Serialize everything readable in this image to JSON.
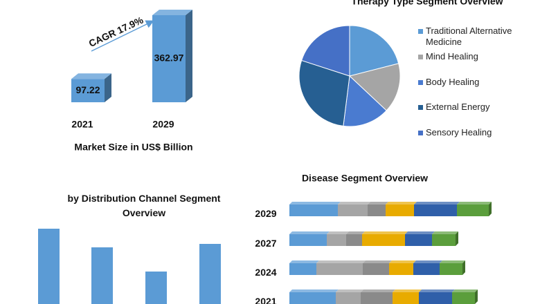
{
  "chart_data": [
    {
      "type": "bar3d",
      "categories": [
        "2021",
        "2029"
      ],
      "values": [
        97.22,
        362.97
      ],
      "color": "#5b9bd5",
      "annotation": "CAGR 17.9%",
      "xlabel": "Market Size in US$ Billion"
    },
    {
      "type": "pie",
      "title": "Therapy Type Segment Overview",
      "categories": [
        "Traditional Alternative Medicine",
        "Mind Healing",
        "Body Healing",
        "External Energy",
        "Sensory Healing"
      ],
      "values": [
        21,
        16,
        15,
        28,
        20
      ],
      "colors": [
        "#5b9bd5",
        "#a5a5a5",
        "#4a7bd0",
        "#265f92",
        "#4570c6"
      ]
    },
    {
      "type": "bar",
      "title": "by Distribution Channel Segment Overview",
      "categories": [
        null,
        null,
        null,
        null
      ],
      "values": [
        109,
        82,
        47,
        87
      ],
      "color": "#5b9bd5"
    },
    {
      "type": "stacked_hbar",
      "title": "Disease Segment Overview",
      "categories": [
        "2029",
        "2027",
        "2024",
        "2021"
      ],
      "series": [
        {
          "color": "#5b9bd5",
          "values": [
            70,
            54,
            39,
            67
          ]
        },
        {
          "color": "#a5a5a5",
          "values": [
            43,
            28,
            67,
            36
          ]
        },
        {
          "color": "#8a8a8a",
          "values": [
            26,
            23,
            38,
            46
          ]
        },
        {
          "color": "#e8ab00",
          "values": [
            41,
            62,
            35,
            38
          ]
        },
        {
          "color": "#2f5fa9",
          "values": [
            62,
            39,
            38,
            48
          ]
        },
        {
          "color": "#5b9e3c",
          "values": [
            46,
            34,
            33,
            33
          ]
        }
      ]
    }
  ]
}
